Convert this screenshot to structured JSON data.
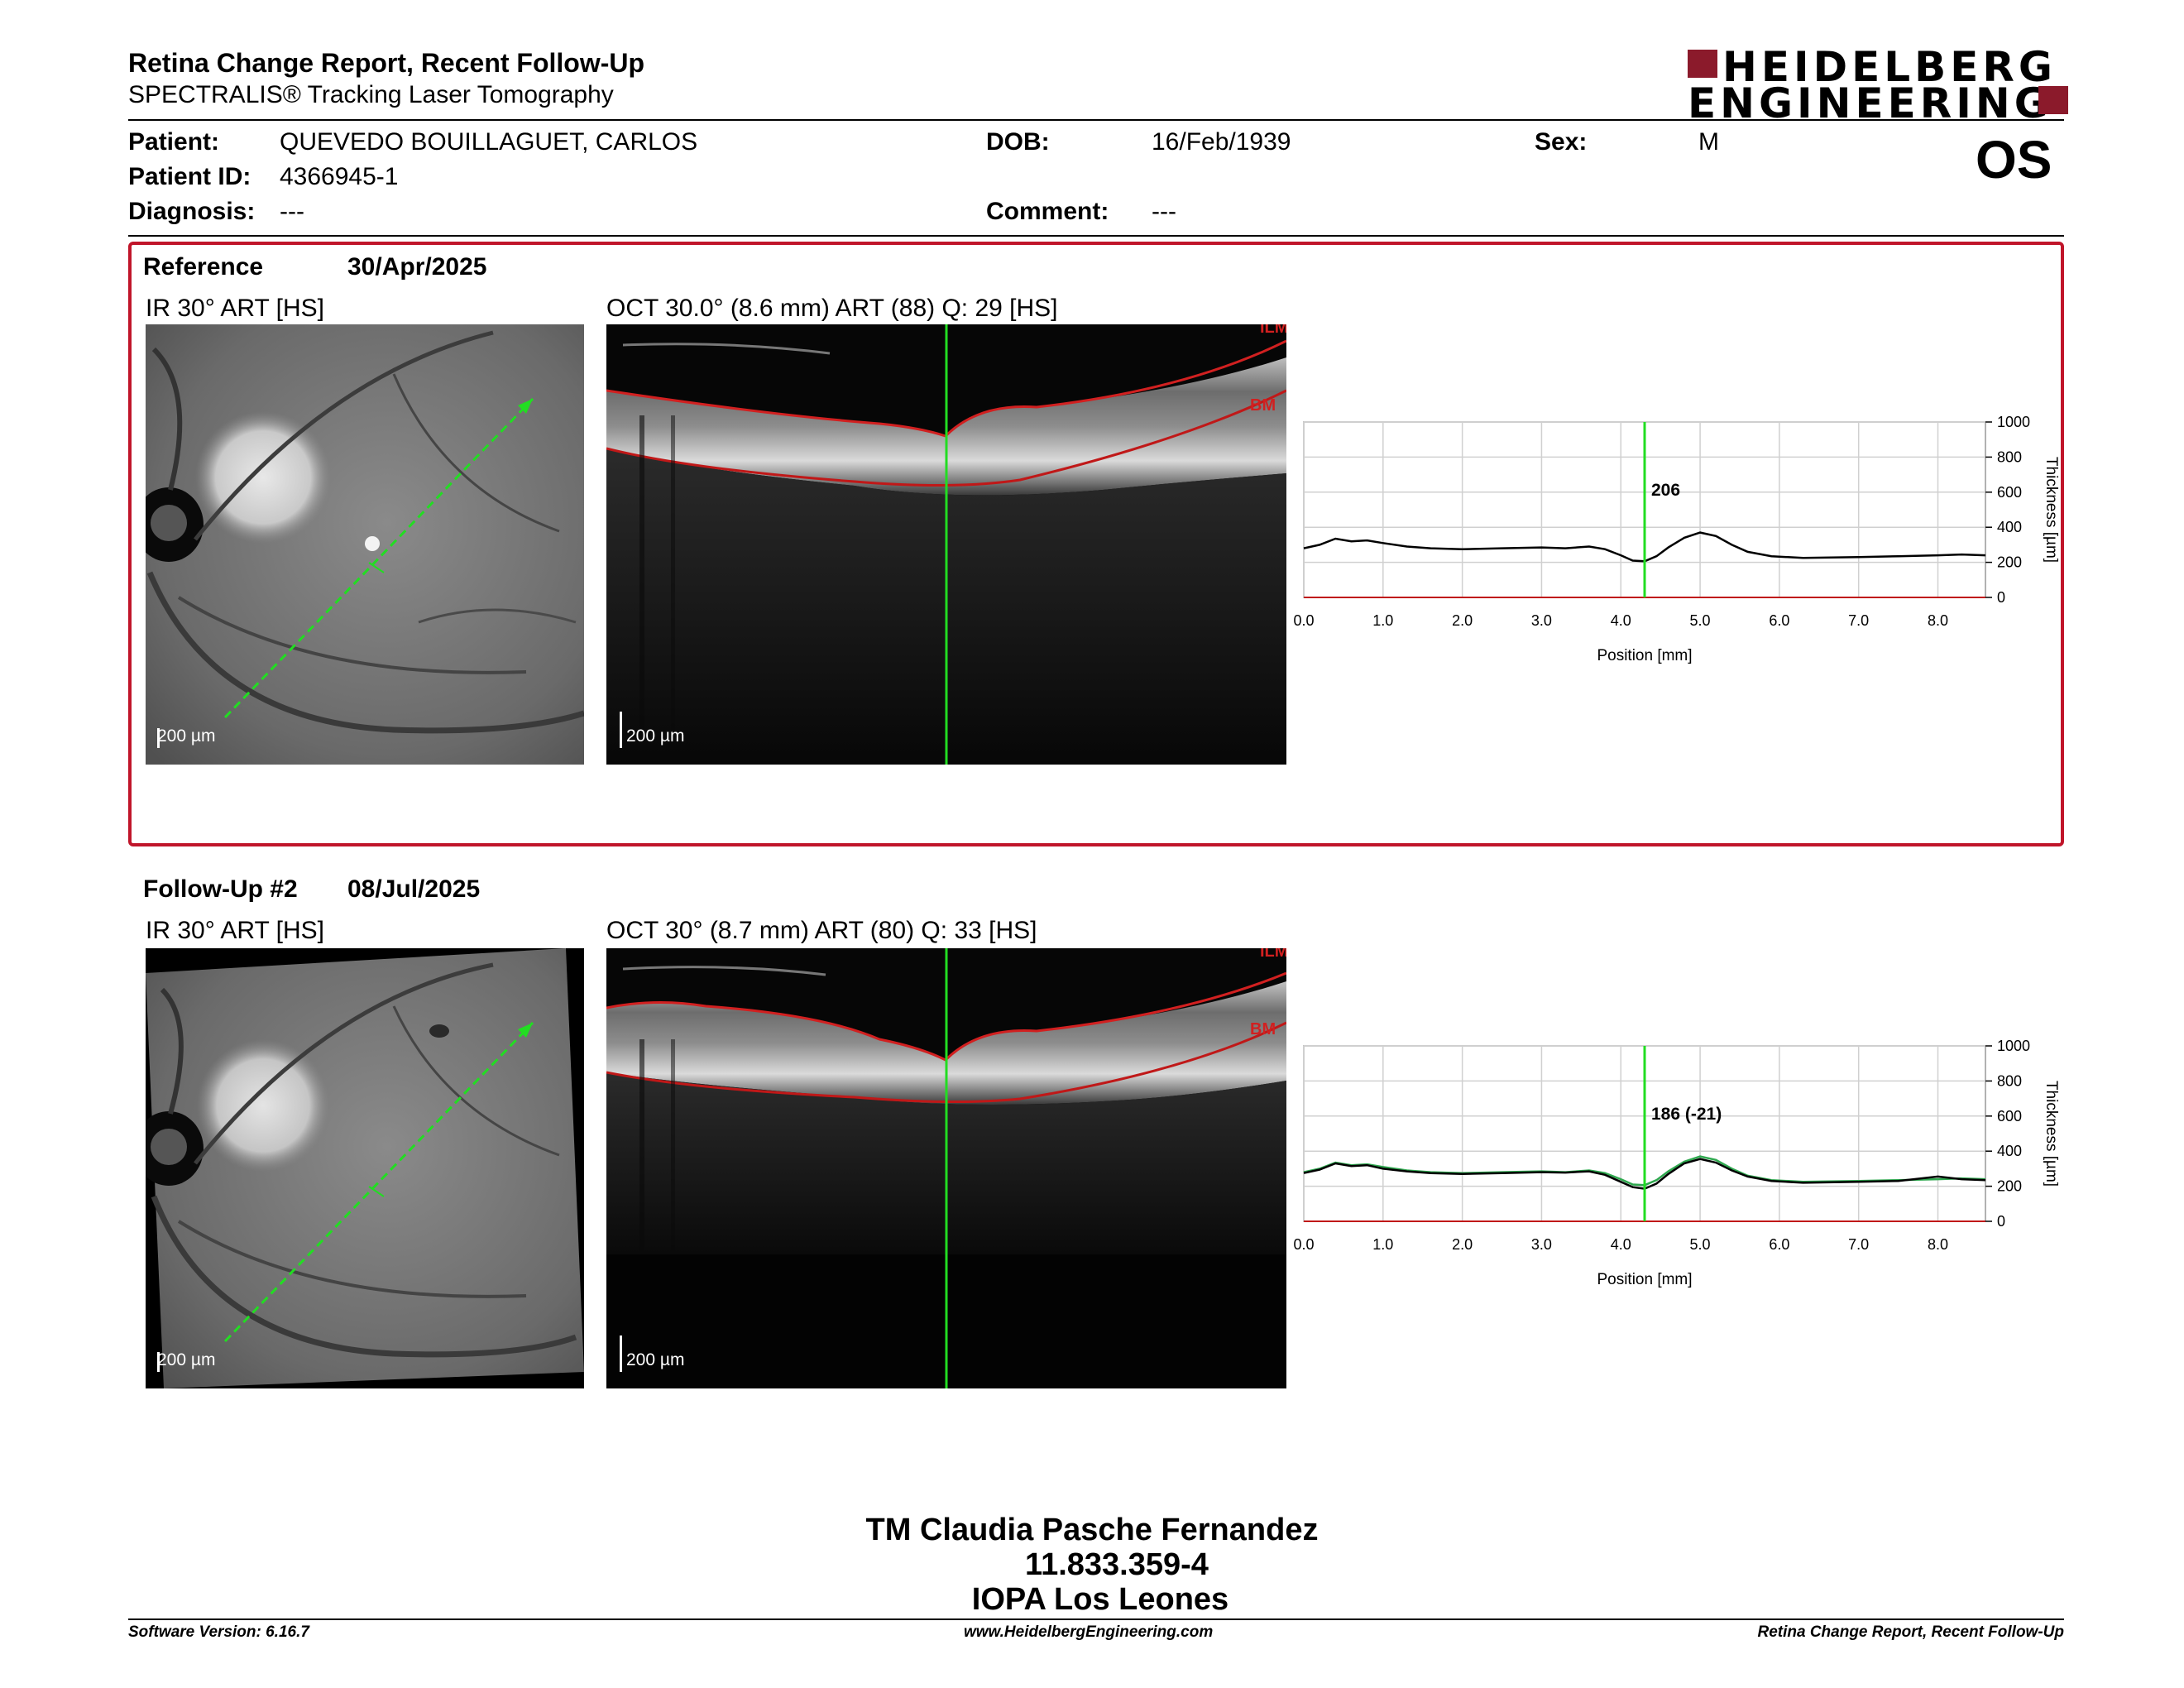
{
  "header": {
    "title": "Retina Change Report, Recent Follow-Up",
    "subtitle": "SPECTRALIS® Tracking Laser Tomography",
    "logo_line1": "HEIDELBERG",
    "logo_line2": "ENGINEERING",
    "eye": "OS"
  },
  "patient": {
    "patient_label": "Patient:",
    "patient_value": "QUEVEDO BOUILLAGUET, CARLOS",
    "id_label": "Patient ID:",
    "id_value": "4366945-1",
    "diagnosis_label": "Diagnosis:",
    "diagnosis_value": "---",
    "dob_label": "DOB:",
    "dob_value": "16/Feb/1939",
    "comment_label": "Comment:",
    "comment_value": "---",
    "sex_label": "Sex:",
    "sex_value": "M"
  },
  "reference": {
    "label": "Reference",
    "date": "30/Apr/2025",
    "ir_caption": "IR 30° ART [HS]",
    "oct_caption": "OCT 30.0° (8.6 mm) ART (88) Q: 29 [HS]",
    "scale": "200 µm",
    "ilm": "ILM",
    "bm": "BM",
    "marker_label": "206"
  },
  "followup": {
    "label": "Follow-Up #2",
    "date": "08/Jul/2025",
    "ir_caption": "IR 30° ART [HS]",
    "oct_caption": "OCT 30° (8.7 mm) ART (80) Q: 33 [HS]",
    "scale": "200 µm",
    "ilm": "ILM",
    "bm": "BM",
    "marker_label": "186 (-21)"
  },
  "chart_data": [
    {
      "type": "line",
      "xlabel": "Position [mm]",
      "ylabel": "Thickness [µm]",
      "xlim": [
        0,
        8.6
      ],
      "ylim": [
        0,
        1000
      ],
      "xticks": [
        "0.0",
        "1.0",
        "2.0",
        "3.0",
        "4.0",
        "5.0",
        "6.0",
        "7.0",
        "8.0"
      ],
      "yticks": [
        "0",
        "200",
        "400",
        "600",
        "800",
        "1000"
      ],
      "grid": true,
      "marker_x": 4.3,
      "marker_label": "206",
      "series": [
        {
          "color": "#000000",
          "x": [
            0,
            0.2,
            0.4,
            0.6,
            0.8,
            1.0,
            1.3,
            1.6,
            2.0,
            2.5,
            3.0,
            3.3,
            3.6,
            3.8,
            4.0,
            4.15,
            4.3,
            4.45,
            4.6,
            4.8,
            5.0,
            5.2,
            5.4,
            5.6,
            5.9,
            6.3,
            7.0,
            7.5,
            8.0,
            8.3,
            8.6
          ],
          "y": [
            280,
            300,
            335,
            320,
            325,
            310,
            290,
            280,
            275,
            280,
            285,
            280,
            290,
            275,
            240,
            210,
            206,
            235,
            285,
            340,
            370,
            350,
            300,
            260,
            235,
            225,
            230,
            235,
            240,
            245,
            240
          ]
        }
      ]
    },
    {
      "type": "line",
      "xlabel": "Position [mm]",
      "ylabel": "Thickness [µm]",
      "xlim": [
        0,
        8.6
      ],
      "ylim": [
        0,
        1000
      ],
      "xticks": [
        "0.0",
        "1.0",
        "2.0",
        "3.0",
        "4.0",
        "5.0",
        "6.0",
        "7.0",
        "8.0"
      ],
      "yticks": [
        "0",
        "200",
        "400",
        "600",
        "800",
        "1000"
      ],
      "grid": true,
      "marker_x": 4.3,
      "marker_label": "186 (-21)",
      "series": [
        {
          "color": "#2fa84f",
          "x": [
            0,
            0.2,
            0.4,
            0.6,
            0.8,
            1.0,
            1.3,
            1.6,
            2.0,
            2.5,
            3.0,
            3.3,
            3.6,
            3.8,
            4.0,
            4.15,
            4.3,
            4.45,
            4.6,
            4.8,
            5.0,
            5.2,
            5.4,
            5.6,
            5.9,
            6.3,
            7.0,
            7.5,
            8.0,
            8.3,
            8.6
          ],
          "y": [
            280,
            300,
            335,
            320,
            325,
            310,
            290,
            280,
            275,
            280,
            285,
            280,
            290,
            275,
            240,
            210,
            206,
            235,
            285,
            340,
            370,
            350,
            300,
            260,
            235,
            225,
            230,
            235,
            240,
            245,
            240
          ]
        },
        {
          "color": "#000000",
          "x": [
            0,
            0.2,
            0.4,
            0.6,
            0.8,
            1.0,
            1.3,
            1.6,
            2.0,
            2.5,
            3.0,
            3.3,
            3.6,
            3.8,
            4.0,
            4.15,
            4.3,
            4.45,
            4.6,
            4.8,
            5.0,
            5.2,
            5.4,
            5.6,
            5.9,
            6.3,
            7.0,
            7.5,
            8.0,
            8.3,
            8.6
          ],
          "y": [
            275,
            295,
            330,
            315,
            320,
            300,
            285,
            275,
            270,
            275,
            280,
            278,
            285,
            265,
            225,
            195,
            186,
            215,
            270,
            330,
            355,
            335,
            290,
            255,
            230,
            220,
            225,
            230,
            255,
            240,
            235
          ]
        }
      ]
    }
  ],
  "signature": {
    "line1": "TM Claudia Pasche Fernandez",
    "line2": "11.833.359-4",
    "line3": "IOPA Los Leones"
  },
  "footer": {
    "software": "Software Version: 6.16.7",
    "website": "www.HeidelbergEngineering.com",
    "report": "Retina Change Report, Recent Follow-Up"
  }
}
